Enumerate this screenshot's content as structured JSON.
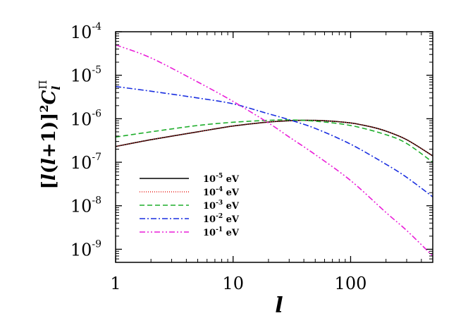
{
  "chart_data": {
    "type": "line",
    "xlabel": "l",
    "ylabel": {
      "bracket_open": "[",
      "l1": "l",
      "paren_open": "(",
      "l2": "l",
      "plus_one": "+1",
      "paren_close": ")",
      "bracket_close": "]",
      "power": "2",
      "C": "C",
      "sub": "l",
      "sup": "Π"
    },
    "xscale": "log",
    "yscale": "log",
    "xlim": [
      1,
      500
    ],
    "ylim": [
      5e-10,
      0.0001
    ],
    "x_ticks": [
      {
        "value": 1,
        "label": "1"
      },
      {
        "value": 10,
        "label": "10"
      },
      {
        "value": 100,
        "label": "100"
      }
    ],
    "y_ticks": [
      {
        "value": 1e-09,
        "base": "10",
        "exp": "-9"
      },
      {
        "value": 1e-08,
        "base": "10",
        "exp": "-8"
      },
      {
        "value": 1e-07,
        "base": "10",
        "exp": "-7"
      },
      {
        "value": 1e-06,
        "base": "10",
        "exp": "-6"
      },
      {
        "value": 1e-05,
        "base": "10",
        "exp": "-5"
      },
      {
        "value": 0.0001,
        "base": "10",
        "exp": "-4"
      }
    ],
    "grid": false,
    "legend_position": "bottom-left",
    "series": [
      {
        "label_base": "10",
        "label_exp": "-5",
        "label_unit": " eV",
        "color": "#000000",
        "dash": "solid",
        "stroke_width": 1.6,
        "x": [
          1,
          2,
          5,
          10,
          20,
          30,
          40,
          60,
          100,
          150,
          200,
          300,
          500
        ],
        "y": [
          2.3e-07,
          3.3e-07,
          5e-07,
          6.8e-07,
          8.4e-07,
          9e-07,
          9.2e-07,
          9e-07,
          8e-07,
          6.5e-07,
          5.2e-07,
          3.3e-07,
          1.4e-07
        ]
      },
      {
        "label_base": "10",
        "label_exp": "-4",
        "label_unit": " eV",
        "color": "#e8231f",
        "dash": "1,2",
        "stroke_width": 1.4,
        "x": [
          1,
          2,
          5,
          10,
          20,
          30,
          40,
          60,
          100,
          150,
          200,
          300,
          500
        ],
        "y": [
          2.3e-07,
          3.3e-07,
          5e-07,
          6.8e-07,
          8.4e-07,
          9e-07,
          9.2e-07,
          9e-07,
          8e-07,
          6.5e-07,
          5.2e-07,
          3.3e-07,
          1.4e-07
        ]
      },
      {
        "label_base": "10",
        "label_exp": "-3",
        "label_unit": " eV",
        "color": "#1fae2c",
        "dash": "7,4",
        "stroke_width": 1.6,
        "x": [
          1,
          2,
          5,
          10,
          20,
          30,
          50,
          100,
          200,
          300,
          500
        ],
        "y": [
          3.8e-07,
          5e-07,
          7e-07,
          8.3e-07,
          9.2e-07,
          9.4e-07,
          8.8e-07,
          7e-07,
          4.3e-07,
          2.7e-07,
          1e-07
        ]
      },
      {
        "label_base": "10",
        "label_exp": "-2",
        "label_unit": " eV",
        "color": "#1a2fe0",
        "dash": "8,3,2,3",
        "stroke_width": 1.6,
        "x": [
          1,
          2,
          5,
          10,
          20,
          30,
          50,
          100,
          200,
          300,
          500
        ],
        "y": [
          5.5e-06,
          4.3e-06,
          3e-06,
          2.2e-06,
          1.3e-06,
          9.5e-07,
          6e-07,
          2.6e-07,
          9e-08,
          4.5e-08,
          1.6e-08
        ]
      },
      {
        "label_base": "10",
        "label_exp": "-1",
        "label_unit": " eV",
        "color": "#ea1ed8",
        "dash": "8,3,2,3,2,3",
        "stroke_width": 1.6,
        "x": [
          1,
          2,
          5,
          10,
          20,
          30,
          50,
          100,
          200,
          300,
          500
        ],
        "y": [
          5e-05,
          2.5e-05,
          7e-06,
          2.5e-06,
          8e-07,
          3.8e-07,
          1.5e-07,
          3.8e-08,
          7e-09,
          2.7e-09,
          7e-10
        ]
      }
    ]
  }
}
